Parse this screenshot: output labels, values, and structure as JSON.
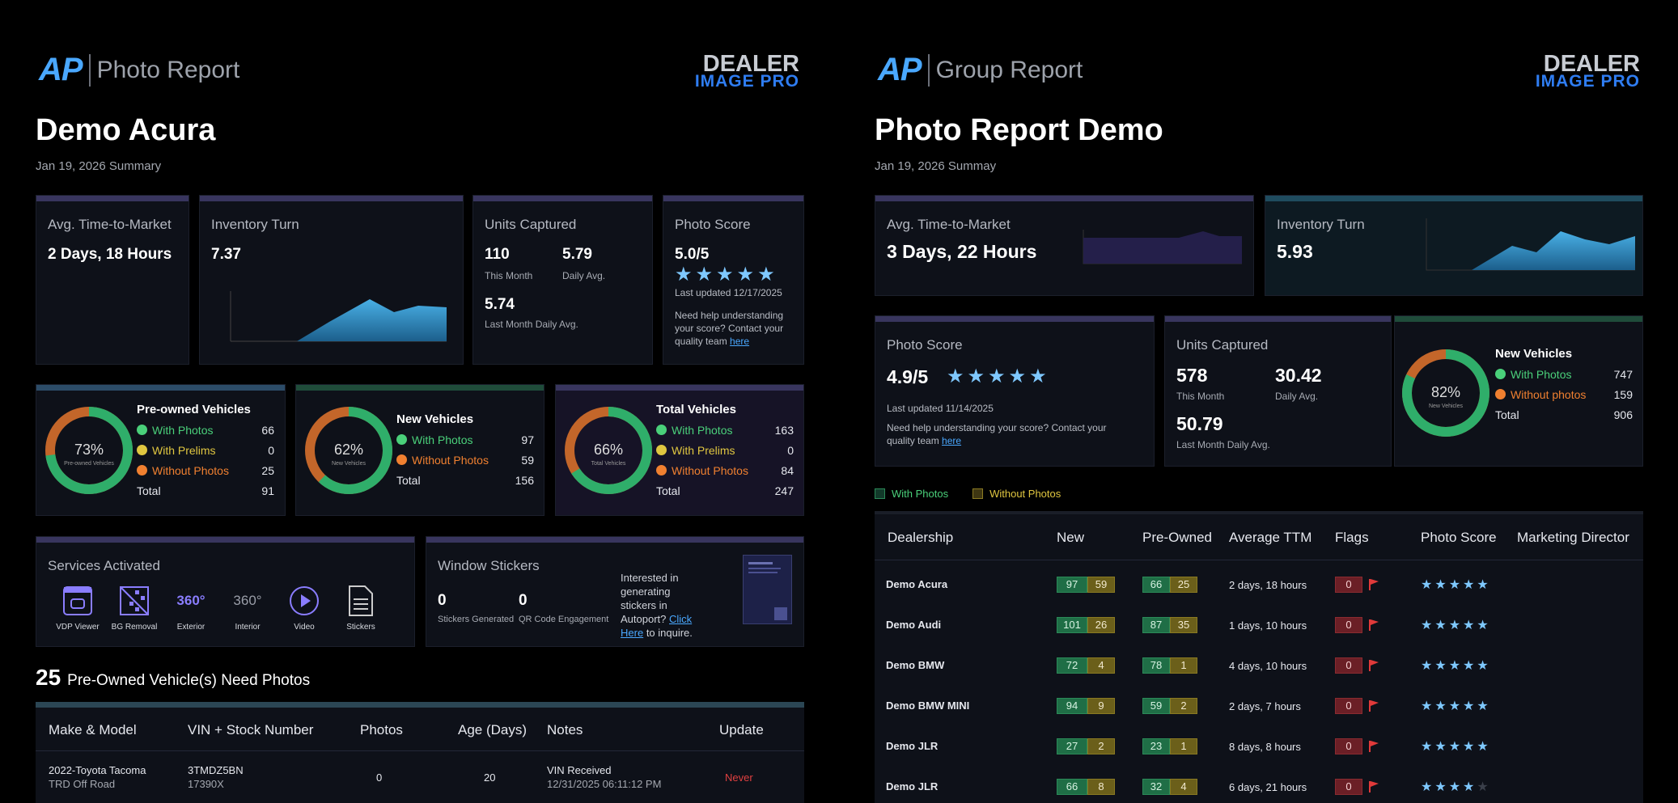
{
  "left": {
    "logo_ap": "AP",
    "report_type": "Photo Report",
    "brand_top": "DEALER",
    "brand_bottom": "IMAGE PRO",
    "title": "Demo Acura",
    "subtitle": "Jan 19, 2026 Summary",
    "ttm": {
      "label": "Avg. Time-to-Market",
      "value": "2 Days, 18 Hours"
    },
    "inventory": {
      "label": "Inventory Turn",
      "value": "7.37"
    },
    "units": {
      "label": "Units Captured",
      "month_val": "110",
      "month_lbl": "This Month",
      "daily_val": "5.79",
      "daily_lbl": "Daily Avg.",
      "last_val": "5.74",
      "last_lbl": "Last Month Daily Avg."
    },
    "score": {
      "label": "Photo Score",
      "value": "5.0/5",
      "stars": 5,
      "updated": "Last updated 12/17/2025",
      "help": "Need help understanding your score? Contact your quality team",
      "link": "here"
    },
    "preowned": {
      "title": "Pre-owned Vehicles",
      "pct": "73%",
      "ring_label": "Pre-owned Vehicles",
      "fraction": 0.73,
      "with_photos": "With Photos",
      "with_photos_v": "66",
      "with_prelims": "With Prelims",
      "with_prelims_v": "0",
      "without": "Without Photos",
      "without_v": "25",
      "total": "Total",
      "total_v": "91"
    },
    "newv": {
      "title": "New Vehicles",
      "pct": "62%",
      "ring_label": "New Vehicles",
      "fraction": 0.62,
      "with_photos": "With Photos",
      "with_photos_v": "97",
      "without": "Without Photos",
      "without_v": "59",
      "total": "Total",
      "total_v": "156"
    },
    "totalv": {
      "title": "Total Vehicles",
      "pct": "66%",
      "ring_label": "Total Vehicles",
      "fraction": 0.66,
      "with_photos": "With Photos",
      "with_photos_v": "163",
      "with_prelims": "With Prelims",
      "with_prelims_v": "0",
      "without": "Without Photos",
      "without_v": "84",
      "total": "Total",
      "total_v": "247"
    },
    "services": {
      "label": "Services Activated",
      "items": [
        "VDP Viewer",
        "BG Removal",
        "Exterior",
        "Interior",
        "Video",
        "Stickers"
      ]
    },
    "stickers": {
      "label": "Window Stickers",
      "gen_v": "0",
      "gen_lbl": "Stickers Generated",
      "qr_v": "0",
      "qr_lbl": "QR Code Engagement",
      "promo_pre": "Interested in generating stickers in Autoport?",
      "promo_link": "Click Here",
      "promo_post": "to inquire."
    },
    "need": {
      "count": "25",
      "text": "Pre-Owned Vehicle(s) Need Photos"
    },
    "table": {
      "headers": [
        "Make & Model",
        "VIN + Stock Number",
        "Photos",
        "Age (Days)",
        "Notes",
        "Update"
      ],
      "rows": [
        {
          "model": "2022-Toyota Tacoma",
          "trim": "TRD Off Road",
          "vin": "3TMDZ5BN",
          "stock": "17390X",
          "photos": "0",
          "age": "20",
          "note": "VIN Received",
          "note_date": "12/31/2025 06:11:12 PM",
          "update": "Never"
        }
      ]
    }
  },
  "right": {
    "logo_ap": "AP",
    "report_type": "Group Report",
    "brand_top": "DEALER",
    "brand_bottom": "IMAGE PRO",
    "title": "Photo Report Demo",
    "subtitle": "Jan 19, 2026 Summay",
    "ttm": {
      "label": "Avg. Time-to-Market",
      "value": "3 Days, 22 Hours"
    },
    "inventory": {
      "label": "Inventory Turn",
      "value": "5.93"
    },
    "score": {
      "label": "Photo Score",
      "value": "4.9/5",
      "stars": 5,
      "updated": "Last updated 11/14/2025",
      "help": "Need help understanding your score? Contact your quality team",
      "link": "here"
    },
    "units": {
      "label": "Units Captured",
      "month_val": "578",
      "month_lbl": "This Month",
      "daily_val": "30.42",
      "daily_lbl": "Daily Avg.",
      "last_val": "50.79",
      "last_lbl": "Last Month Daily Avg."
    },
    "newv": {
      "title": "New Vehicles",
      "pct": "82%",
      "ring_label": "New Vehicles",
      "fraction": 0.82,
      "with_photos": "With Photos",
      "with_photos_v": "747",
      "without": "Without photos",
      "without_v": "159",
      "total": "Total",
      "total_v": "906"
    },
    "legend": {
      "with": "With Photos",
      "without": "Without Photos"
    },
    "table": {
      "headers": [
        "Dealership",
        "New",
        "Pre-Owned",
        "Average TTM",
        "Flags",
        "Photo Score",
        "Marketing Director"
      ],
      "rows": [
        {
          "name": "Demo Acura",
          "new_with": "97",
          "new_without": "59",
          "pre_with": "66",
          "pre_without": "25",
          "ttm": "2 days, 18 hours",
          "flags": "0",
          "stars": 5
        },
        {
          "name": "Demo Audi",
          "new_with": "101",
          "new_without": "26",
          "pre_with": "87",
          "pre_without": "35",
          "ttm": "1 days, 10 hours",
          "flags": "0",
          "stars": 5
        },
        {
          "name": "Demo BMW",
          "new_with": "72",
          "new_without": "4",
          "pre_with": "78",
          "pre_without": "1",
          "ttm": "4 days, 10 hours",
          "flags": "0",
          "stars": 5
        },
        {
          "name": "Demo BMW MINI",
          "new_with": "94",
          "new_without": "9",
          "pre_with": "59",
          "pre_without": "2",
          "ttm": "2 days, 7 hours",
          "flags": "0",
          "stars": 5
        },
        {
          "name": "Demo JLR",
          "new_with": "27",
          "new_without": "2",
          "pre_with": "23",
          "pre_without": "1",
          "ttm": "8 days, 8 hours",
          "flags": "0",
          "stars": 5
        },
        {
          "name": "Demo JLR",
          "new_with": "66",
          "new_without": "8",
          "pre_with": "32",
          "pre_without": "4",
          "ttm": "6 days, 21 hours",
          "flags": "0",
          "stars": 4
        }
      ]
    }
  },
  "colors": {
    "accent": "#4aa8ff",
    "green": "#2fae6a",
    "orange": "#e0702a",
    "card": "#0e1119"
  }
}
